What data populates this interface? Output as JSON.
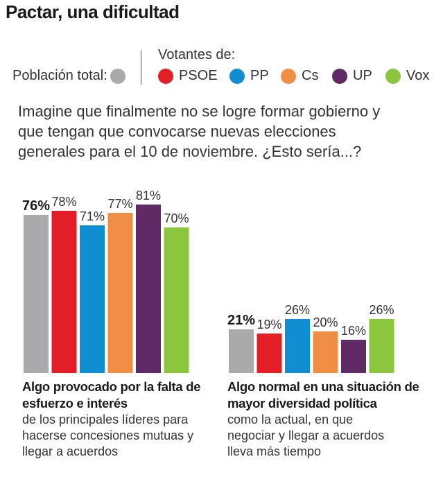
{
  "title": "Pactar, una dificultad",
  "legend": {
    "total_label": "Población total:",
    "voters_label": "Votantes de:",
    "total_color": "#aaaaac",
    "parties": [
      {
        "name": "PSOE",
        "color": "#e31e26"
      },
      {
        "name": "PP",
        "color": "#0f8fd1"
      },
      {
        "name": "Cs",
        "color": "#f18e45"
      },
      {
        "name": "UP",
        "color": "#5f2a66"
      },
      {
        "name": "Vox",
        "color": "#8cc63f"
      }
    ]
  },
  "question": "Imagine que finalmente no se logre formar gobierno y que tengan que convocarse nuevas elecciones generales para el 10 de noviembre. ¿Esto sería...?",
  "chart_data": {
    "type": "bar",
    "title": "Pactar, una dificultad",
    "series_names": [
      "Población total",
      "PSOE",
      "PP",
      "Cs",
      "UP",
      "Vox"
    ],
    "colors": [
      "#aaaaac",
      "#e31e26",
      "#0f8fd1",
      "#f18e45",
      "#5f2a66",
      "#8cc63f"
    ],
    "ylim": [
      0,
      100
    ],
    "unit": "%",
    "groups": [
      {
        "bold_label": "Algo provocado por la falta de esfuerzo e interés",
        "sub_label": "de los principales líderes para hacerse concesiones mutuas y llegar a acuerdos",
        "values": [
          76,
          78,
          71,
          77,
          81,
          70
        ],
        "value_labels": [
          "76%",
          "78%",
          "71%",
          "77%",
          "81%",
          "70%"
        ]
      },
      {
        "bold_label": "Algo normal en una situación de mayor diversidad política",
        "sub_label": "como la actual, en que negociar y llegar a acuerdos lleva más tiempo",
        "values": [
          21,
          19,
          26,
          20,
          16,
          26
        ],
        "value_labels": [
          "21%",
          "19%",
          "26%",
          "20%",
          "16%",
          "26%"
        ]
      }
    ]
  }
}
